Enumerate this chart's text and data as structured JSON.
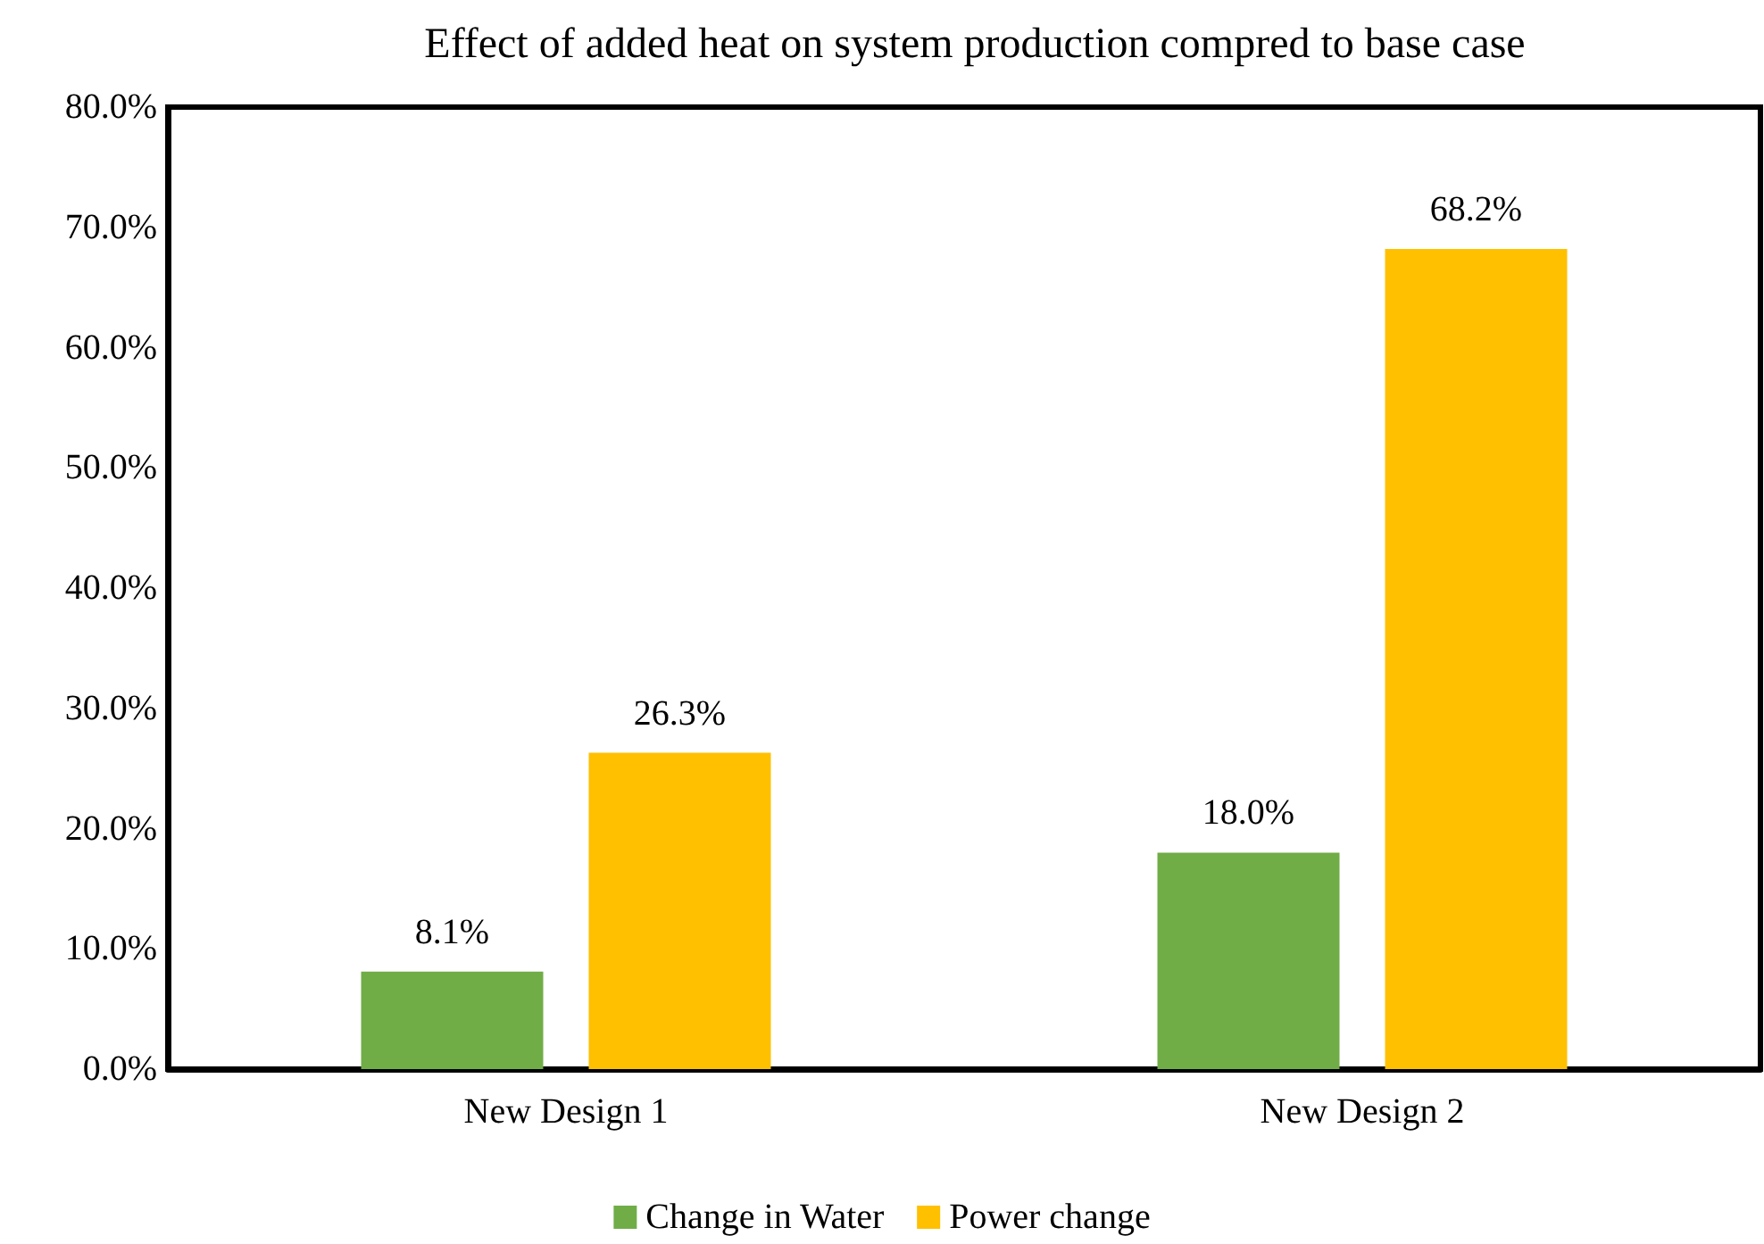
{
  "chart_data": {
    "type": "bar",
    "title": "Effect of added heat on system production compred to base case",
    "categories": [
      "New Design 1",
      "New Design 2"
    ],
    "series": [
      {
        "name": "Change in Water",
        "color": "#70ad47",
        "values": [
          8.1,
          18.0
        ],
        "value_labels": [
          "8.1%",
          "18.0%"
        ]
      },
      {
        "name": "Power change",
        "color": "#ffc000",
        "values": [
          26.3,
          68.2
        ],
        "value_labels": [
          "26.3%",
          "68.2%"
        ]
      }
    ],
    "ylim": [
      0,
      80
    ],
    "yticks": [
      {
        "value": 0,
        "label": "0.0%"
      },
      {
        "value": 10,
        "label": "10.0%"
      },
      {
        "value": 20,
        "label": "20.0%"
      },
      {
        "value": 30,
        "label": "30.0%"
      },
      {
        "value": 40,
        "label": "40.0%"
      },
      {
        "value": 50,
        "label": "50.0%"
      },
      {
        "value": 60,
        "label": "60.0%"
      },
      {
        "value": 70,
        "label": "70.0%"
      },
      {
        "value": 80,
        "label": "80.0%"
      }
    ],
    "grid": false,
    "legend": "bottom"
  }
}
